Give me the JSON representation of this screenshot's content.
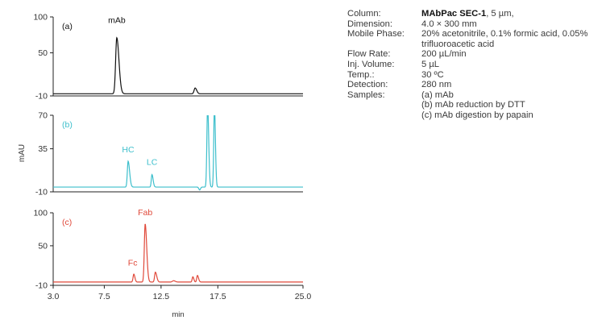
{
  "chart_data": {
    "type": "line",
    "y_axis_label": "mAU",
    "x_axis_label": "min",
    "x_ticks": [
      "3.0",
      "7.5",
      "12.5",
      "17.5",
      "25.0"
    ],
    "x_range": [
      3.0,
      25.0
    ],
    "panels": [
      {
        "id": "a",
        "label": "(a)",
        "color": "#111111",
        "ylim": [
          -10,
          100
        ],
        "y_ticks": [
          "100",
          "50",
          "-10"
        ],
        "baseline": -7,
        "peaks": [
          {
            "rt": 8.6,
            "height": 78,
            "width": 0.2,
            "tail": 0.18
          },
          {
            "rt": 15.5,
            "height": 8,
            "width": 0.18,
            "tail": 0.1
          }
        ],
        "annotations": [
          {
            "text": "mAb",
            "x": 8.6,
            "y": 86
          }
        ]
      },
      {
        "id": "b",
        "label": "(b)",
        "color": "#3dbfcc",
        "ylim": [
          -10,
          70
        ],
        "y_ticks": [
          "70",
          "35",
          "-10"
        ],
        "baseline": -5,
        "peaks": [
          {
            "rt": 9.6,
            "height": 27,
            "width": 0.14,
            "tail": 0.12
          },
          {
            "rt": 11.7,
            "height": 13,
            "width": 0.12,
            "tail": 0.08
          },
          {
            "rt": 16.6,
            "height": 85,
            "width": 0.13,
            "tail": 0.06
          },
          {
            "rt": 17.2,
            "height": 85,
            "width": 0.12,
            "tail": 0.05
          }
        ],
        "dips": [
          {
            "rt": 15.9,
            "depth": 3,
            "width": 0.15
          }
        ],
        "annotations": [
          {
            "text": "HC",
            "x": 9.6,
            "y": 27
          },
          {
            "text": "LC",
            "x": 11.7,
            "y": 14
          }
        ]
      },
      {
        "id": "c",
        "label": "(c)",
        "color": "#e0493a",
        "ylim": [
          -10,
          100
        ],
        "y_ticks": [
          "100",
          "50",
          "-10"
        ],
        "baseline": -5,
        "peaks": [
          {
            "rt": 10.1,
            "height": 12,
            "width": 0.13,
            "tail": 0.06
          },
          {
            "rt": 11.1,
            "height": 88,
            "width": 0.15,
            "tail": 0.12
          },
          {
            "rt": 12.0,
            "height": 15,
            "width": 0.14,
            "tail": 0.1
          },
          {
            "rt": 13.6,
            "height": 2,
            "width": 0.2,
            "tail": 0.1
          },
          {
            "rt": 15.3,
            "height": 8,
            "width": 0.12,
            "tail": 0.05
          },
          {
            "rt": 15.7,
            "height": 10,
            "width": 0.12,
            "tail": 0.08
          }
        ],
        "annotations": [
          {
            "text": "Fab",
            "x": 11.1,
            "y": 90
          },
          {
            "text": "Fc",
            "x": 10.0,
            "y": 14
          }
        ]
      }
    ]
  },
  "conditions": [
    {
      "key": "Column:",
      "value_bold": "MAbPac SEC-1",
      "value": ", 5 µm,"
    },
    {
      "key": "Dimension:",
      "value_bold": "",
      "value": "4.0 × 300 mm"
    },
    {
      "key": "Mobile Phase:",
      "value_bold": "",
      "value": "20% acetonitrile, 0.1% formic acid, 0.05% trifluoroacetic acid"
    },
    {
      "key": "Flow Rate:",
      "value_bold": "",
      "value": "200 µL/min"
    },
    {
      "key": "Inj. Volume:",
      "value_bold": "",
      "value": "5 µL"
    },
    {
      "key": "Temp.:",
      "value_bold": "",
      "value": "30 ºC"
    },
    {
      "key": "Detection:",
      "value_bold": "",
      "value": "280 nm"
    },
    {
      "key": "Samples:",
      "value_bold": "",
      "value": "(a) mAb"
    },
    {
      "key": "",
      "value_bold": "",
      "value": "(b) mAb reduction by DTT"
    },
    {
      "key": "",
      "value_bold": "",
      "value": "(c) mAb digestion by papain"
    }
  ]
}
